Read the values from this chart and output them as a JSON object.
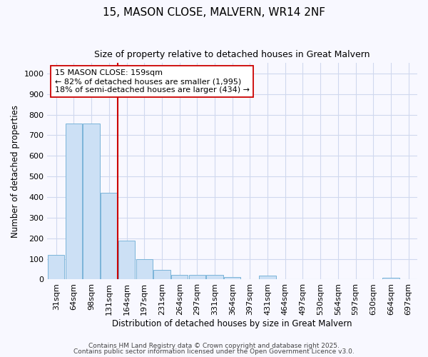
{
  "title": "15, MASON CLOSE, MALVERN, WR14 2NF",
  "subtitle": "Size of property relative to detached houses in Great Malvern",
  "xlabel": "Distribution of detached houses by size in Great Malvern",
  "ylabel": "Number of detached properties",
  "categories": [
    "31sqm",
    "64sqm",
    "98sqm",
    "131sqm",
    "164sqm",
    "197sqm",
    "231sqm",
    "264sqm",
    "297sqm",
    "331sqm",
    "364sqm",
    "397sqm",
    "431sqm",
    "464sqm",
    "497sqm",
    "530sqm",
    "564sqm",
    "597sqm",
    "630sqm",
    "664sqm",
    "697sqm"
  ],
  "values": [
    118,
    758,
    758,
    420,
    190,
    97,
    47,
    22,
    22,
    22,
    13,
    0,
    20,
    0,
    0,
    0,
    0,
    0,
    0,
    10,
    0
  ],
  "bar_color": "#cce0f5",
  "bar_edge_color": "#7ab4d8",
  "property_line_color": "#cc0000",
  "property_bin_index": 4,
  "annotation_line1": "15 MASON CLOSE: 159sqm",
  "annotation_line2": "← 82% of detached houses are smaller (1,995)",
  "annotation_line3": "18% of semi-detached houses are larger (434) →",
  "annotation_box_facecolor": "#ffffff",
  "annotation_box_edgecolor": "#cc0000",
  "ylim": [
    0,
    1050
  ],
  "yticks": [
    0,
    100,
    200,
    300,
    400,
    500,
    600,
    700,
    800,
    900,
    1000
  ],
  "footer_line1": "Contains HM Land Registry data © Crown copyright and database right 2025.",
  "footer_line2": "Contains public sector information licensed under the Open Government Licence v3.0.",
  "fig_facecolor": "#f8f8ff",
  "axes_facecolor": "#f8f8ff",
  "grid_color": "#d0d8ee",
  "title_fontsize": 11,
  "subtitle_fontsize": 9,
  "axis_label_fontsize": 8.5,
  "tick_fontsize": 8,
  "annotation_fontsize": 8,
  "footer_fontsize": 6.5
}
